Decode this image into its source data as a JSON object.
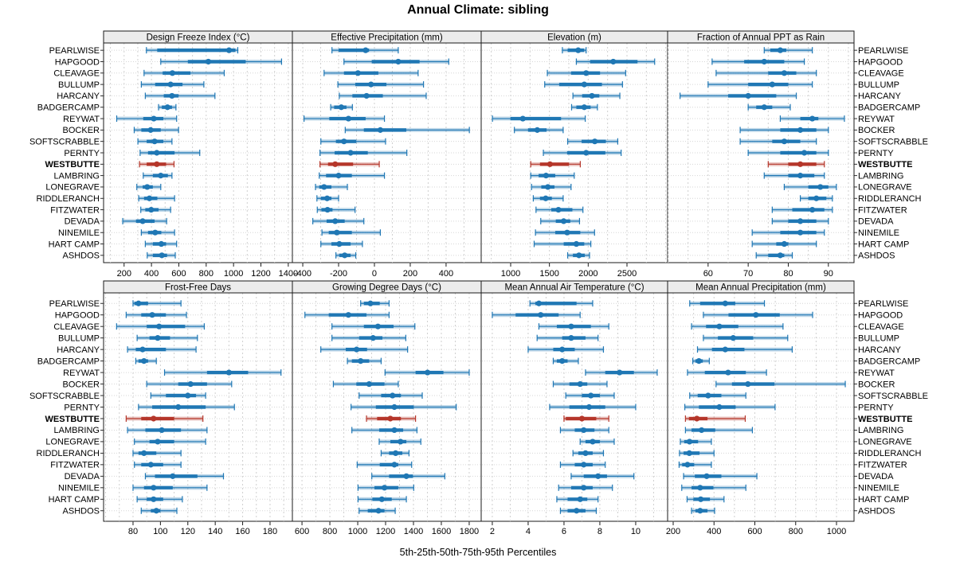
{
  "title": "Annual Climate: sibling",
  "footer": "5th-25th-50th-75th-95th Percentiles",
  "percentile_labels": [
    "5th",
    "25th",
    "50th",
    "75th",
    "95th"
  ],
  "highlight_site": "WESTBUTTE",
  "colors": {
    "series": "#1f77b4",
    "highlight": "#b5362a",
    "header_bg": "#ececec",
    "panel_border": "#1a1a1a",
    "grid": "#cfcfcf",
    "row_line": "#d6d6d6",
    "text": "#000000"
  },
  "sites": [
    "PEARLWISE",
    "HAPGOOD",
    "CLEAVAGE",
    "BULLUMP",
    "HARCANY",
    "BADGERCAMP",
    "REYWAT",
    "BOCKER",
    "SOFTSCRABBLE",
    "PERNTY",
    "WESTBUTTE",
    "LAMBRING",
    "LONEGRAVE",
    "RIDDLERANCH",
    "FITZWATER",
    "DEVADA",
    "NINEMILE",
    "HART CAMP",
    "ASHDOS"
  ],
  "chart_data": [
    {
      "type": "scatter",
      "subtype": "percentile-interval-dot",
      "title": "Design Freeze Index (°C)",
      "xlim": [
        50,
        1430
      ],
      "ticks": [
        200,
        400,
        600,
        800,
        1000,
        1200,
        1400
      ],
      "percentiles": [
        5,
        25,
        50,
        75,
        95
      ],
      "values": [
        [
          363,
          442,
          967,
          1014,
          1031
        ],
        [
          468,
          666,
          816,
          1089,
          1351
        ],
        [
          346,
          482,
          553,
          685,
          932
        ],
        [
          326,
          427,
          540,
          627,
          783
        ],
        [
          355,
          490,
          550,
          598,
          864
        ],
        [
          452,
          476,
          517,
          550,
          579
        ],
        [
          146,
          340,
          417,
          487,
          584
        ],
        [
          274,
          326,
          394,
          468,
          598
        ],
        [
          301,
          365,
          423,
          487,
          550
        ],
        [
          317,
          375,
          439,
          569,
          753
        ],
        [
          313,
          365,
          439,
          507,
          565
        ],
        [
          340,
          410,
          468,
          520,
          550
        ],
        [
          293,
          336,
          369,
          410,
          468
        ],
        [
          307,
          346,
          385,
          443,
          569
        ],
        [
          322,
          355,
          398,
          452,
          540
        ],
        [
          190,
          287,
          336,
          423,
          511
        ],
        [
          326,
          375,
          427,
          472,
          569
        ],
        [
          355,
          410,
          472,
          507,
          584
        ],
        [
          369,
          410,
          476,
          514,
          574
        ]
      ]
    },
    {
      "type": "scatter",
      "subtype": "percentile-interval-dot",
      "title": "Effective Precipitation (mm)",
      "xlim": [
        -458,
        596
      ],
      "ticks": [
        -400,
        -200,
        0,
        200,
        400
      ],
      "percentiles": [
        5,
        25,
        50,
        75,
        95
      ],
      "values": [
        [
          -237,
          -200,
          -49,
          -30,
          133
        ],
        [
          -170,
          -15,
          133,
          252,
          415
        ],
        [
          -281,
          -170,
          -92,
          22,
          244
        ],
        [
          -204,
          -107,
          -19,
          67,
          274
        ],
        [
          -196,
          -123,
          -44,
          47,
          289
        ],
        [
          -244,
          -225,
          -185,
          -156,
          -123
        ],
        [
          -393,
          -252,
          -145,
          -49,
          56
        ],
        [
          -163,
          -59,
          33,
          178,
          530
        ],
        [
          -299,
          -215,
          -170,
          -101,
          62
        ],
        [
          -304,
          -222,
          -133,
          -37,
          181
        ],
        [
          -304,
          -259,
          -219,
          -119,
          27
        ],
        [
          -308,
          -270,
          -200,
          -126,
          56
        ],
        [
          -329,
          -308,
          -281,
          -240,
          -151
        ],
        [
          -321,
          -299,
          -264,
          -240,
          -200
        ],
        [
          -319,
          -296,
          -262,
          -234,
          -108
        ],
        [
          -344,
          -267,
          -219,
          -166,
          -59
        ],
        [
          -293,
          -255,
          -210,
          -126,
          33
        ],
        [
          -299,
          -240,
          -196,
          -133,
          -67
        ],
        [
          -215,
          -196,
          -166,
          -133,
          -104
        ]
      ]
    },
    {
      "type": "scatter",
      "subtype": "percentile-interval-dot",
      "title": "Elevation (m)",
      "xlim": [
        620,
        3024
      ],
      "ticks": [
        1000,
        1500,
        2000,
        2500
      ],
      "percentiles": [
        5,
        25,
        50,
        75,
        95
      ],
      "values": [
        [
          1667,
          1735,
          1871,
          1949,
          1973
        ],
        [
          1847,
          2024,
          2323,
          2636,
          2857
        ],
        [
          1473,
          1779,
          1973,
          2153,
          2483
        ],
        [
          1439,
          1626,
          1949,
          2177,
          2442
        ],
        [
          1803,
          1922,
          2048,
          2143,
          2408
        ],
        [
          1786,
          1847,
          1949,
          2031,
          2119
        ],
        [
          765,
          997,
          1157,
          1650,
          1962
        ],
        [
          1048,
          1224,
          1343,
          1463,
          1677
        ],
        [
          1735,
          1915,
          2085,
          2228,
          2381
        ],
        [
          1422,
          1728,
          1973,
          2221,
          2425
        ],
        [
          1259,
          1378,
          1507,
          1752,
          1898
        ],
        [
          1259,
          1361,
          1456,
          1575,
          1820
        ],
        [
          1269,
          1395,
          1480,
          1565,
          1779
        ],
        [
          1292,
          1378,
          1452,
          1531,
          1677
        ],
        [
          1327,
          1524,
          1616,
          1796,
          1932
        ],
        [
          1388,
          1582,
          1684,
          1769,
          1888
        ],
        [
          1320,
          1575,
          1728,
          1898,
          2082
        ],
        [
          1303,
          1684,
          1847,
          1949,
          2034
        ],
        [
          1735,
          1803,
          1881,
          1956,
          2017
        ]
      ]
    },
    {
      "type": "scatter",
      "subtype": "percentile-interval-dot",
      "title": "Fraction of Annual PPT as Rain",
      "xlim": [
        49.9,
        96.4
      ],
      "ticks": [
        60,
        70,
        80,
        90
      ],
      "percentiles": [
        5,
        25,
        50,
        75,
        95
      ],
      "values": [
        [
          74,
          75.5,
          78,
          79.5,
          86
        ],
        [
          61,
          69,
          74,
          79,
          84
        ],
        [
          62,
          75,
          79,
          82,
          87
        ],
        [
          60,
          70,
          76,
          80,
          86
        ],
        [
          53,
          65,
          70,
          77,
          82
        ],
        [
          70,
          72,
          74,
          76,
          80.5
        ],
        [
          78,
          83,
          86,
          87.5,
          94
        ],
        [
          68,
          78,
          83,
          87,
          90
        ],
        [
          68,
          76,
          79,
          83,
          87
        ],
        [
          70,
          78,
          84,
          87,
          90
        ],
        [
          75,
          80,
          83,
          87,
          89
        ],
        [
          74,
          80,
          83,
          86.5,
          89
        ],
        [
          79,
          85,
          88,
          90,
          92
        ],
        [
          83,
          85,
          87,
          89.5,
          91
        ],
        [
          76,
          81,
          86,
          89,
          91
        ],
        [
          76,
          80,
          83,
          87,
          90
        ],
        [
          71,
          78,
          83,
          87,
          89
        ],
        [
          71,
          77,
          79,
          80,
          87
        ],
        [
          72,
          75,
          78,
          79,
          81
        ]
      ]
    },
    {
      "type": "scatter",
      "subtype": "percentile-interval-dot",
      "title": "Frost-Free Days",
      "xlim": [
        58.5,
        196.3
      ],
      "ticks": [
        80,
        100,
        120,
        140,
        160,
        180
      ],
      "percentiles": [
        5,
        25,
        50,
        75,
        95
      ],
      "values": [
        [
          80,
          81,
          84,
          91,
          115
        ],
        [
          75,
          86,
          94,
          104,
          119
        ],
        [
          68,
          90,
          99,
          118,
          132
        ],
        [
          83,
          92,
          98,
          107,
          127
        ],
        [
          76,
          82,
          87,
          104,
          126
        ],
        [
          82,
          84,
          88,
          91,
          97
        ],
        [
          103,
          134,
          150,
          164,
          188
        ],
        [
          90,
          113,
          122,
          134,
          152
        ],
        [
          93,
          104,
          120,
          126,
          133
        ],
        [
          84,
          94,
          113,
          133,
          154
        ],
        [
          75,
          86,
          95,
          110,
          131
        ],
        [
          76,
          89,
          101,
          115,
          134
        ],
        [
          81,
          92,
          98,
          110,
          133
        ],
        [
          80,
          84,
          88,
          97,
          115
        ],
        [
          81,
          86,
          93,
          102,
          115
        ],
        [
          89,
          96,
          109,
          127,
          146
        ],
        [
          80,
          88,
          95,
          109,
          134
        ],
        [
          83,
          90,
          95,
          102,
          116
        ],
        [
          86,
          93,
          97,
          100,
          112
        ]
      ]
    },
    {
      "type": "scatter",
      "subtype": "percentile-interval-dot",
      "title": "Growing Degree Days (°C)",
      "xlim": [
        531,
        1886
      ],
      "ticks": [
        600,
        800,
        1000,
        1200,
        1400,
        1600,
        1800
      ],
      "percentiles": [
        5,
        25,
        50,
        75,
        95
      ],
      "values": [
        [
          1021,
          1044,
          1091,
          1158,
          1225
        ],
        [
          621,
          792,
          933,
          1063,
          1225
        ],
        [
          815,
          1044,
          1145,
          1257,
          1410
        ],
        [
          815,
          1010,
          1110,
          1177,
          1345
        ],
        [
          735,
          914,
          992,
          1067,
          1358
        ],
        [
          926,
          958,
          1021,
          1082,
          1168
        ],
        [
          1196,
          1415,
          1501,
          1615,
          1800
        ],
        [
          825,
          990,
          1082,
          1192,
          1291
        ],
        [
          1010,
          1168,
          1250,
          1310,
          1463
        ],
        [
          952,
          1130,
          1263,
          1402,
          1707
        ],
        [
          1063,
          1139,
          1234,
          1310,
          1415
        ],
        [
          958,
          1154,
          1263,
          1326,
          1425
        ],
        [
          1154,
          1234,
          1307,
          1349,
          1453
        ],
        [
          1168,
          1225,
          1272,
          1320,
          1368
        ],
        [
          996,
          1158,
          1263,
          1291,
          1387
        ],
        [
          1101,
          1225,
          1349,
          1396,
          1625
        ],
        [
          1002,
          1120,
          1192,
          1291,
          1402
        ],
        [
          1002,
          1105,
          1173,
          1244,
          1349
        ],
        [
          1010,
          1072,
          1149,
          1192,
          1269
        ]
      ]
    },
    {
      "type": "scatter",
      "subtype": "percentile-interval-dot",
      "title": "Mean Annual Air Temperature (°C)",
      "xlim": [
        1.38,
        11.78
      ],
      "ticks": [
        2,
        4,
        6,
        8,
        10
      ],
      "percentiles": [
        5,
        25,
        50,
        75,
        95
      ],
      "values": [
        [
          4.1,
          4.4,
          4.6,
          6.7,
          7.6
        ],
        [
          2.0,
          3.3,
          4.7,
          5.7,
          6.9
        ],
        [
          4.6,
          5.6,
          6.4,
          7.5,
          8.5
        ],
        [
          4.5,
          5.9,
          6.4,
          7.2,
          7.9
        ],
        [
          4.0,
          5.4,
          5.9,
          6.6,
          8.2
        ],
        [
          5.4,
          5.6,
          5.9,
          6.2,
          6.8
        ],
        [
          7.2,
          8.3,
          9.1,
          9.9,
          11.2
        ],
        [
          5.4,
          6.3,
          6.9,
          7.3,
          8.4
        ],
        [
          6.1,
          7.0,
          7.5,
          8.0,
          8.8
        ],
        [
          5.2,
          6.3,
          7.4,
          8.3,
          10.0
        ],
        [
          6.0,
          6.1,
          7.0,
          7.8,
          8.5
        ],
        [
          5.8,
          6.6,
          7.1,
          7.7,
          8.5
        ],
        [
          6.9,
          7.2,
          7.6,
          8.0,
          8.8
        ],
        [
          6.5,
          6.8,
          7.2,
          7.6,
          8.2
        ],
        [
          5.8,
          6.6,
          7.1,
          7.6,
          8.3
        ],
        [
          6.4,
          7.1,
          7.9,
          8.4,
          9.9
        ],
        [
          5.7,
          6.4,
          7.1,
          7.6,
          8.7
        ],
        [
          5.6,
          6.2,
          6.9,
          7.3,
          7.9
        ],
        [
          5.8,
          6.2,
          6.7,
          7.2,
          7.8
        ]
      ]
    },
    {
      "type": "scatter",
      "subtype": "percentile-interval-dot",
      "title": "Mean Annual Precipitation (mm)",
      "xlim": [
        172.7,
        1085.8
      ],
      "ticks": [
        200,
        400,
        600,
        800,
        1000
      ],
      "percentiles": [
        5,
        25,
        50,
        75,
        95
      ],
      "values": [
        [
          281,
          332,
          455,
          504,
          647
        ],
        [
          348,
          471,
          605,
          722,
          883
        ],
        [
          290,
          361,
          426,
          519,
          738
        ],
        [
          348,
          419,
          494,
          592,
          761
        ],
        [
          319,
          390,
          455,
          549,
          783
        ],
        [
          296,
          309,
          326,
          345,
          377
        ],
        [
          270,
          355,
          469,
          556,
          657
        ],
        [
          410,
          488,
          566,
          696,
          1043
        ],
        [
          281,
          320,
          371,
          436,
          556
        ],
        [
          257,
          326,
          426,
          506,
          699
        ],
        [
          260,
          277,
          316,
          368,
          553
        ],
        [
          260,
          290,
          339,
          406,
          588
        ],
        [
          235,
          254,
          280,
          322,
          387
        ],
        [
          231,
          251,
          279,
          329,
          400
        ],
        [
          229,
          244,
          270,
          303,
          387
        ],
        [
          251,
          306,
          364,
          436,
          610
        ],
        [
          242,
          290,
          332,
          397,
          556
        ],
        [
          268,
          299,
          335,
          380,
          449
        ],
        [
          290,
          309,
          332,
          368,
          403
        ]
      ]
    }
  ]
}
